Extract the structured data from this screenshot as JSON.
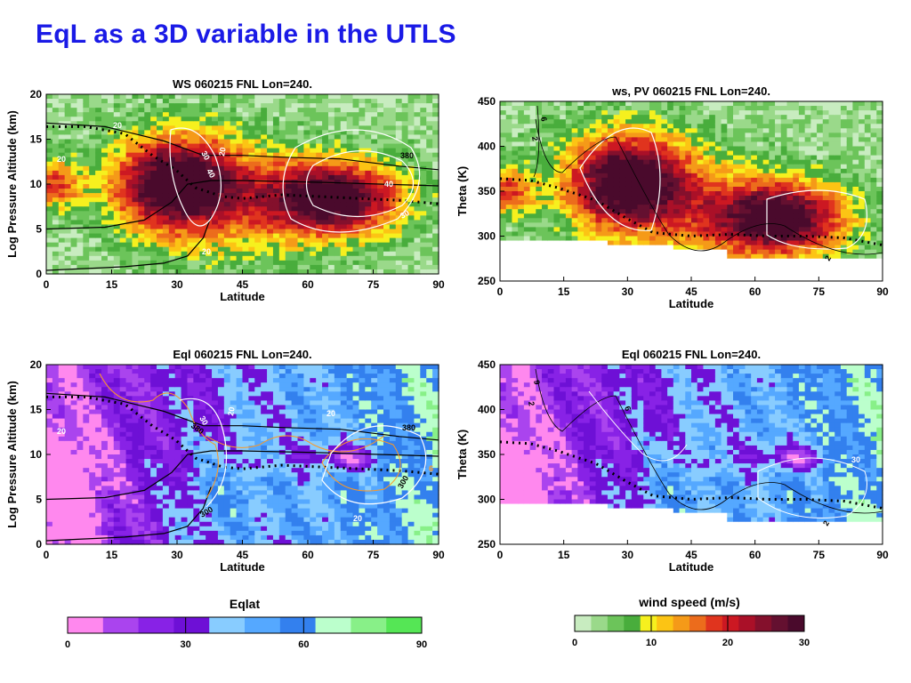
{
  "slide": {
    "title": "EqL as a  3D variable in the UTLS"
  },
  "chart_data": [
    {
      "type": "heatmap",
      "title": "WS 060215 FNL Lon=240.",
      "xlabel": "Latitude",
      "ylabel": "Log Pressure Altitude (km)",
      "xlim": [
        0,
        90
      ],
      "ylim": [
        0,
        20
      ],
      "xticks": [
        "0",
        "15",
        "30",
        "45",
        "60",
        "75",
        "90"
      ],
      "yticks": [
        "0",
        "5",
        "10",
        "15",
        "20"
      ],
      "colorbar": "wind speed (m/s)",
      "field": "wind speed",
      "jet_maxima": [
        {
          "lat": 32,
          "alt": 11,
          "value": 40
        },
        {
          "lat": 72,
          "alt": 9,
          "value": 40
        }
      ],
      "contour_labels": [
        "20",
        "30",
        "40",
        "20",
        "20",
        "40",
        "30",
        "20",
        "380"
      ],
      "theta_contours": [
        300,
        380
      ]
    },
    {
      "type": "heatmap",
      "title": "ws, PV 060215 FNL Lon=240.",
      "xlabel": "Latitude",
      "ylabel": "Theta (K)",
      "xlim": [
        0,
        90
      ],
      "ylim": [
        250,
        450
      ],
      "xticks": [
        "0",
        "15",
        "30",
        "45",
        "60",
        "75",
        "90"
      ],
      "yticks": [
        "250",
        "300",
        "350",
        "400",
        "450"
      ],
      "colorbar": "wind speed (m/s)",
      "field": "wind speed",
      "jet_maxima": [
        {
          "lat": 32,
          "theta": 360,
          "value": 40
        },
        {
          "lat": 72,
          "theta": 330,
          "value": 40
        }
      ],
      "contour_labels": [
        "6",
        "2",
        "2"
      ]
    },
    {
      "type": "heatmap",
      "title": "Eql 060215 FNL Lon=240.",
      "xlabel": "Latitude",
      "ylabel": "Log Pressure Altitude (km)",
      "xlim": [
        0,
        90
      ],
      "ylim": [
        0,
        20
      ],
      "xticks": [
        "0",
        "15",
        "30",
        "45",
        "60",
        "75",
        "90"
      ],
      "yticks": [
        "0",
        "5",
        "10",
        "15",
        "20"
      ],
      "colorbar": "Eqlat",
      "field": "equivalent latitude",
      "contour_labels": [
        "20",
        "30",
        "380",
        "20",
        "380",
        "20",
        "300",
        "20",
        "300",
        "6"
      ],
      "theta_contours": [
        300,
        380
      ]
    },
    {
      "type": "heatmap",
      "title": "Eql 060215 FNL Lon=240.",
      "xlabel": "Latitude",
      "ylabel": "Theta (K)",
      "xlim": [
        0,
        90
      ],
      "ylim": [
        250,
        450
      ],
      "xticks": [
        "0",
        "15",
        "30",
        "45",
        "60",
        "75",
        "90"
      ],
      "yticks": [
        "250",
        "300",
        "350",
        "400",
        "450"
      ],
      "colorbar": "Eqlat",
      "field": "equivalent latitude",
      "contour_labels": [
        "9",
        "2",
        "6",
        "30",
        "2"
      ]
    }
  ],
  "colorbars": {
    "eqlat": {
      "title": "Eqlat",
      "ticks": [
        "0",
        "30",
        "60",
        "90"
      ],
      "min": 0,
      "max": 90,
      "colors": [
        "#ff88ee",
        "#aa44ee",
        "#8822e6",
        "#6e10d6",
        "#88ccff",
        "#55a8ff",
        "#3380ee",
        "#bbffcc",
        "#88f088",
        "#55e655"
      ]
    },
    "wind": {
      "title": "wind speed (m/s)",
      "ticks": [
        "0",
        "10",
        "20",
        "30"
      ],
      "min": 0,
      "max": 30,
      "colors": [
        "#c8ecc0",
        "#9ad98a",
        "#6cc45a",
        "#49ad3c",
        "#f6f01e",
        "#fcc414",
        "#f59a18",
        "#ec6c1c",
        "#e0341e",
        "#cc1822",
        "#aa1028",
        "#84102c",
        "#641030",
        "#4a0a2c"
      ]
    }
  }
}
